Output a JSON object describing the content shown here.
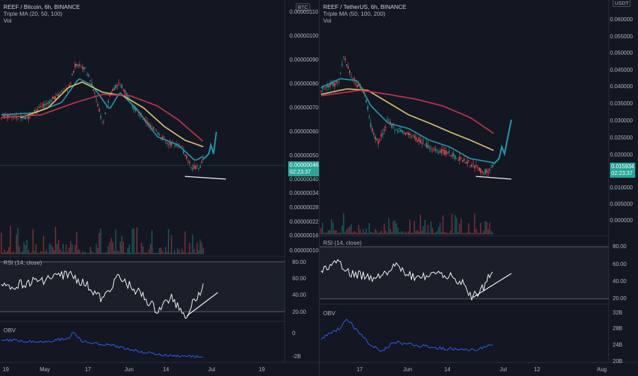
{
  "left_chart": {
    "title": "REEF / Bitcoin, 6h, BINANCE",
    "ma_label": "Triple MA (20, 50, 100)",
    "vol_label": "Vol",
    "rsi_label": "RSI (14, close)",
    "obv_label": "OBV",
    "currency": "BTC",
    "price_ticks": [
      "0.00000110",
      "0.00000100",
      "0.00000090",
      "0.00000080",
      "0.00000070",
      "0.00000060",
      "0.00000050",
      "0.00000040",
      "0.00000034",
      "0.00000028",
      "0.00000022",
      "0.00000016",
      "0.00000010"
    ],
    "current_price": "0.00000046",
    "countdown": "02:23:37",
    "rsi_ticks": [
      "80.00",
      "60.00",
      "40.00",
      "20.00"
    ],
    "obv_ticks": [
      "0",
      "-2B"
    ],
    "time_ticks": [
      "19",
      "May",
      "17",
      "Jun",
      "14",
      "Jul",
      "19"
    ]
  },
  "right_chart": {
    "title": "REEF / TetherUS, 6h, BINANCE",
    "ma_label": "Triple MA (50, 100, 200)",
    "vol_label": "Vol",
    "rsi_label": "RSI (14, close)",
    "obv_label": "OBV",
    "currency": "USDT",
    "price_ticks": [
      "0.060000",
      "0.055000",
      "0.050000",
      "0.045000",
      "0.040000",
      "0.035000",
      "0.030000",
      "0.025000",
      "0.020000",
      "0.010000",
      "0.005000",
      "0.000000"
    ],
    "current_price": "0.015934",
    "countdown": "02:23:37",
    "rsi_ticks": [
      "80.00",
      "60.00",
      "40.00",
      "20.00"
    ],
    "obv_ticks": [
      "32B",
      "28B",
      "24B",
      "20B"
    ],
    "time_ticks": [
      "17",
      "Jun",
      "14",
      "Jul",
      "12",
      "Aug"
    ]
  },
  "colors": {
    "background": "#131722",
    "candle_up": "#26a69a",
    "candle_down": "#ef5350",
    "ma_fast": "#2196a6",
    "ma_mid": "#d4c068",
    "ma_slow": "#c2334a",
    "projection": "#2196a6",
    "obv_line": "#2962ff",
    "rsi_line": "#ffffff"
  }
}
